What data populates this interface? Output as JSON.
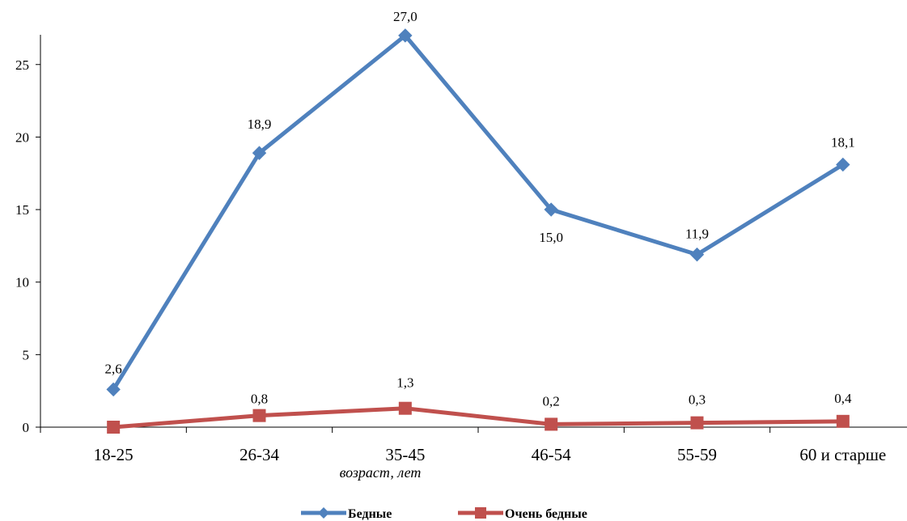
{
  "chart_data": {
    "type": "line",
    "categories": [
      "18-25",
      "26-34",
      "35-45",
      "46-54",
      "55-59",
      "60  и старше"
    ],
    "series": [
      {
        "name": "Бедные",
        "values": [
          2.6,
          18.9,
          27.0,
          15.0,
          11.9,
          18.1
        ],
        "labels": [
          "2,6",
          "18,9",
          "27,0",
          "15,0",
          "11,9",
          "18,1"
        ],
        "color": "#4f81bd"
      },
      {
        "name": "Очень бедные",
        "values": [
          0.0,
          0.8,
          1.3,
          0.2,
          0.3,
          0.4
        ],
        "labels": [
          "",
          "0,8",
          "1,3",
          "0,2",
          "0,3",
          "0,4"
        ],
        "color": "#c0504d"
      }
    ],
    "title": "",
    "xlabel": "возраст, лет",
    "ylabel": "",
    "ylim": [
      0,
      25
    ],
    "yticks": [
      0,
      5,
      10,
      15,
      20,
      25
    ],
    "grid": false,
    "legend": "bottom"
  }
}
